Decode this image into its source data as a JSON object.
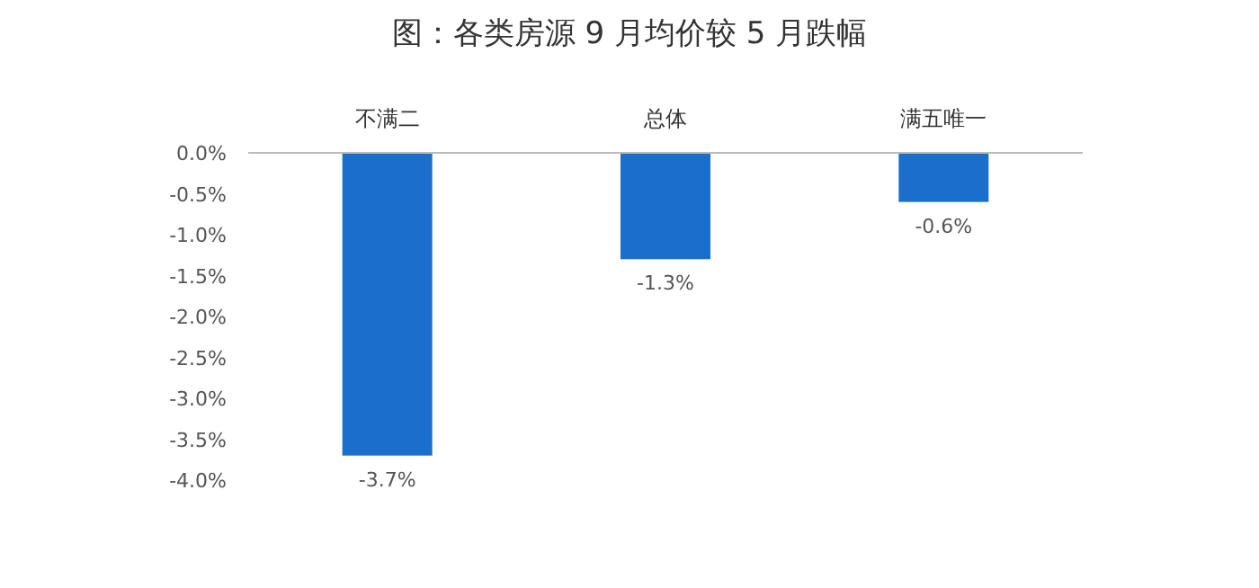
{
  "chart_data": {
    "type": "bar",
    "title": "图：各类房源 9 月均价较 5 月跌幅",
    "categories": [
      "不满二",
      "总体",
      "满五唯一"
    ],
    "values": [
      -3.7,
      -1.3,
      -0.6
    ],
    "value_labels": [
      "-3.7%",
      "-1.3%",
      "-0.6%"
    ],
    "color": "#1a6fcc",
    "ylim": [
      -4.0,
      0
    ],
    "yticks": [
      {
        "value": 0,
        "label": "0.0%"
      },
      {
        "value": -0.5,
        "label": "-0.5%"
      },
      {
        "value": -1.0,
        "label": "-1.0%"
      },
      {
        "value": -1.5,
        "label": "-1.5%"
      },
      {
        "value": -2.0,
        "label": "-2.0%"
      },
      {
        "value": -2.5,
        "label": "-2.5%"
      },
      {
        "value": -3.0,
        "label": "-3.0%"
      },
      {
        "value": -3.5,
        "label": "-3.5%"
      },
      {
        "value": -4.0,
        "label": "-4.0%"
      }
    ]
  }
}
